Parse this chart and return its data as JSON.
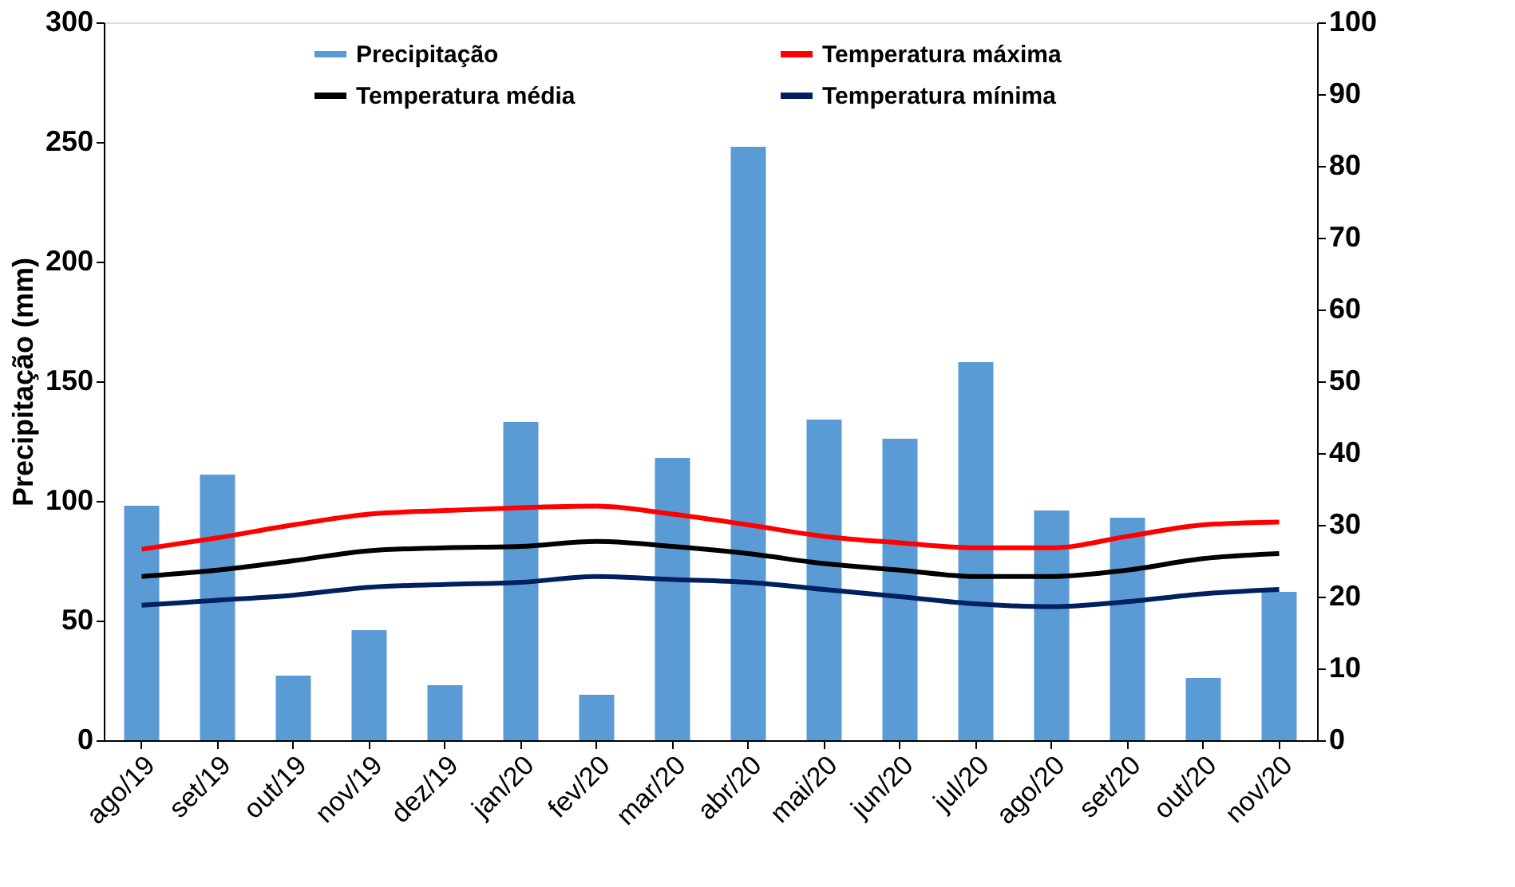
{
  "chart_data": {
    "type": "bar",
    "ylabel": "Precipitação (mm)",
    "categories": [
      "ago/19",
      "set/19",
      "out/19",
      "nov/19",
      "dez/19",
      "jan/20",
      "fev/20",
      "mar/20",
      "abr/20",
      "mai/20",
      "jun/20",
      "jul/20",
      "ago/20",
      "set/20",
      "out/20",
      "nov/20"
    ],
    "series": [
      {
        "name": "Precipitação",
        "axis": "y",
        "color": "#5b9bd5",
        "values": [
          98,
          111,
          27,
          46,
          23,
          133,
          19,
          118,
          248,
          134,
          126,
          158,
          96,
          93,
          26,
          62
        ]
      },
      {
        "name": "Temperatura média",
        "type": "line",
        "axis": "y2",
        "color": "#000000",
        "values": [
          22.8,
          23.7,
          25,
          26.4,
          26.8,
          27,
          27.7,
          27,
          26,
          24.6,
          23.7,
          22.8,
          22.8,
          23.7,
          25.3,
          26
        ]
      },
      {
        "name": "Temperatura máxima",
        "type": "line",
        "axis": "y2",
        "color": "#ff0000",
        "values": [
          26.6,
          28.2,
          30,
          31.5,
          32,
          32.4,
          32.6,
          31.5,
          30,
          28.4,
          27.5,
          26.8,
          26.8,
          28.4,
          30,
          30.4
        ]
      },
      {
        "name": "Temperatura mínima",
        "type": "line",
        "axis": "y2",
        "color": "#002060",
        "values": [
          18.8,
          19.5,
          20.2,
          21.3,
          21.7,
          22,
          22.8,
          22.4,
          22,
          21,
          20,
          19,
          18.6,
          19.3,
          20.4,
          21
        ]
      }
    ],
    "ylim": [
      0,
      300
    ],
    "yticks": [
      0,
      50,
      100,
      150,
      200,
      250,
      300
    ],
    "y2lim": [
      0,
      100
    ],
    "y2ticks": [
      0,
      10,
      20,
      30,
      40,
      50,
      60,
      70,
      80,
      90,
      100
    ],
    "grid": false,
    "legend": "top",
    "marker": "none",
    "line_style": "solid"
  }
}
